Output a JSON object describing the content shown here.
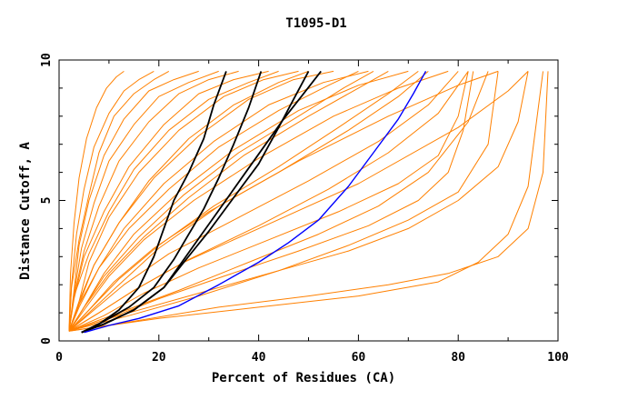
{
  "chart_data": {
    "type": "line",
    "title": "T1095-D1",
    "xlabel": "Percent of Residues (CA)",
    "ylabel": "Distance Cutoff, A",
    "xlim": [
      0,
      100
    ],
    "ylim": [
      0,
      10
    ],
    "x_ticks": [
      "0",
      "20",
      "40",
      "60",
      "80",
      "100"
    ],
    "y_ticks": [
      "0",
      "5",
      "10"
    ],
    "grid": false,
    "legend": "none",
    "colors": {
      "background_models": "#ff8000",
      "highlight": "#000000",
      "best": "#0000ff"
    },
    "background_models": [
      {
        "x": [
          2,
          8,
          15,
          25,
          40,
          60,
          80,
          90,
          94
        ],
        "y": [
          0.35,
          1.0,
          1.8,
          2.8,
          4.0,
          5.6,
          7.6,
          8.9,
          9.6
        ]
      },
      {
        "x": [
          2,
          6,
          12,
          20,
          32,
          48,
          66,
          80,
          88
        ],
        "y": [
          0.35,
          1.0,
          2.0,
          3.3,
          4.8,
          6.4,
          8.0,
          9.1,
          9.6
        ]
      },
      {
        "x": [
          2,
          5,
          10,
          17,
          27,
          40,
          55,
          68,
          78
        ],
        "y": [
          0.35,
          1.1,
          2.3,
          3.6,
          5.0,
          6.5,
          8.0,
          9.0,
          9.6
        ]
      },
      {
        "x": [
          2,
          5,
          9,
          15,
          24,
          35,
          48,
          60,
          70
        ],
        "y": [
          0.35,
          1.2,
          2.4,
          3.8,
          5.3,
          6.8,
          8.2,
          9.1,
          9.6
        ]
      },
      {
        "x": [
          2,
          4,
          8,
          13,
          21,
          31,
          42,
          53,
          62
        ],
        "y": [
          0.35,
          1.2,
          2.6,
          4.0,
          5.6,
          7.1,
          8.4,
          9.2,
          9.6
        ]
      },
      {
        "x": [
          2,
          4,
          7,
          12,
          19,
          28,
          38,
          47,
          55
        ],
        "y": [
          0.35,
          1.3,
          2.7,
          4.2,
          5.8,
          7.3,
          8.6,
          9.3,
          9.6
        ]
      },
      {
        "x": [
          2,
          4,
          6,
          10,
          16,
          24,
          33,
          41,
          48
        ],
        "y": [
          0.35,
          1.4,
          2.8,
          4.4,
          6.0,
          7.5,
          8.7,
          9.3,
          9.6
        ]
      },
      {
        "x": [
          2,
          3,
          5,
          9,
          14,
          21,
          28,
          35,
          42
        ],
        "y": [
          0.35,
          1.5,
          3.0,
          4.6,
          6.2,
          7.7,
          8.8,
          9.3,
          9.6
        ]
      },
      {
        "x": [
          2,
          3,
          5,
          8,
          12,
          18,
          24,
          30,
          36
        ],
        "y": [
          0.35,
          1.6,
          3.2,
          4.8,
          6.4,
          7.8,
          8.8,
          9.3,
          9.6
        ]
      },
      {
        "x": [
          2,
          3,
          4,
          6,
          9,
          13,
          18,
          23,
          28
        ],
        "y": [
          0.35,
          1.8,
          3.4,
          5.0,
          6.6,
          7.9,
          8.9,
          9.3,
          9.6
        ]
      },
      {
        "x": [
          2,
          2.5,
          3.5,
          5,
          7,
          10,
          13,
          16,
          19
        ],
        "y": [
          0.35,
          2.0,
          3.8,
          5.4,
          6.9,
          8.1,
          8.9,
          9.3,
          9.6
        ]
      },
      {
        "x": [
          2,
          2.3,
          3,
          4,
          5.5,
          7.5,
          9.5,
          11.5,
          13
        ],
        "y": [
          0.35,
          2.4,
          4.2,
          5.8,
          7.2,
          8.3,
          9.0,
          9.4,
          9.6
        ]
      },
      {
        "x": [
          2,
          9,
          17,
          28,
          42,
          56,
          68,
          76,
          80,
          82
        ],
        "y": [
          0.35,
          0.9,
          1.7,
          2.6,
          3.6,
          4.6,
          5.6,
          6.6,
          8.0,
          9.6
        ]
      },
      {
        "x": [
          2,
          10,
          20,
          33,
          48,
          62,
          72,
          78,
          81,
          83
        ],
        "y": [
          0.35,
          0.8,
          1.5,
          2.3,
          3.2,
          4.1,
          5.0,
          6.0,
          7.5,
          9.6
        ]
      },
      {
        "x": [
          2,
          14,
          28,
          44,
          58,
          70,
          80,
          86,
          88
        ],
        "y": [
          0.35,
          0.9,
          1.6,
          2.5,
          3.4,
          4.3,
          5.3,
          7.0,
          9.6
        ]
      },
      {
        "x": [
          2,
          12,
          24,
          38,
          52,
          64,
          74,
          82,
          86
        ],
        "y": [
          0.35,
          1.0,
          1.8,
          2.8,
          3.8,
          4.8,
          6.0,
          7.8,
          9.6
        ]
      },
      {
        "x": [
          2,
          7,
          13,
          22,
          35,
          50,
          64,
          74,
          80
        ],
        "y": [
          0.35,
          1.1,
          2.0,
          3.1,
          4.3,
          5.7,
          7.1,
          8.4,
          9.6
        ]
      },
      {
        "x": [
          2,
          6,
          11,
          19,
          30,
          44,
          58,
          68,
          74
        ],
        "y": [
          0.35,
          1.1,
          2.1,
          3.3,
          4.6,
          6.0,
          7.5,
          8.7,
          9.6
        ]
      },
      {
        "x": [
          2,
          4,
          8,
          14,
          22,
          32,
          44,
          54,
          60
        ],
        "y": [
          0.35,
          1.3,
          2.6,
          4.0,
          5.4,
          6.9,
          8.2,
          9.1,
          9.6
        ]
      },
      {
        "x": [
          2,
          5,
          10,
          17,
          26,
          37,
          50,
          60,
          66
        ],
        "y": [
          0.35,
          1.2,
          2.4,
          3.7,
          5.1,
          6.6,
          8.0,
          9.0,
          9.6
        ]
      },
      {
        "x": [
          2,
          3,
          6,
          10,
          15,
          22,
          30,
          38,
          44
        ],
        "y": [
          0.35,
          1.6,
          3.1,
          4.6,
          6.1,
          7.5,
          8.6,
          9.2,
          9.6
        ]
      },
      {
        "x": [
          2,
          3,
          4.5,
          7,
          10,
          15,
          20,
          26,
          32
        ],
        "y": [
          0.35,
          1.7,
          3.3,
          4.9,
          6.4,
          7.7,
          8.7,
          9.2,
          9.6
        ]
      },
      {
        "x": [
          2,
          2.5,
          4,
          6,
          8,
          11,
          15,
          19,
          22
        ],
        "y": [
          0.35,
          1.9,
          3.6,
          5.2,
          6.7,
          8.0,
          8.8,
          9.3,
          9.6
        ]
      },
      {
        "x": [
          2,
          15,
          32,
          50,
          66,
          78,
          88,
          94,
          97,
          98
        ],
        "y": [
          0.35,
          0.7,
          1.2,
          1.6,
          2.0,
          2.4,
          3.0,
          4.0,
          6.0,
          9.6
        ]
      },
      {
        "x": [
          2,
          20,
          40,
          60,
          76,
          84,
          90,
          94,
          97
        ],
        "y": [
          0.35,
          0.8,
          1.2,
          1.6,
          2.1,
          2.8,
          3.8,
          5.5,
          9.6
        ]
      },
      {
        "x": [
          2,
          12,
          26,
          42,
          58,
          70,
          80,
          88,
          92,
          94
        ],
        "y": [
          0.35,
          0.9,
          1.6,
          2.4,
          3.2,
          4.0,
          5.0,
          6.2,
          7.8,
          9.6
        ]
      },
      {
        "x": [
          2,
          8,
          15,
          26,
          40,
          54,
          66,
          76,
          82
        ],
        "y": [
          0.35,
          1.0,
          1.8,
          2.9,
          4.1,
          5.4,
          6.7,
          8.1,
          9.6
        ]
      },
      {
        "x": [
          2,
          6,
          12,
          20,
          31,
          44,
          56,
          66,
          72
        ],
        "y": [
          0.35,
          1.1,
          2.2,
          3.4,
          4.8,
          6.2,
          7.6,
          8.8,
          9.6
        ]
      },
      {
        "x": [
          2,
          5,
          9,
          16,
          25,
          36,
          48,
          57,
          63
        ],
        "y": [
          0.35,
          1.2,
          2.3,
          3.7,
          5.2,
          6.7,
          8.0,
          9.0,
          9.6
        ]
      },
      {
        "x": [
          2,
          4,
          7,
          12,
          18,
          26,
          35,
          44,
          50
        ],
        "y": [
          0.35,
          1.4,
          2.7,
          4.2,
          5.7,
          7.2,
          8.4,
          9.2,
          9.6
        ]
      }
    ],
    "highlighted_models": [
      {
        "x": [
          4.5,
          8,
          12,
          16,
          19,
          21,
          23,
          26,
          29,
          31,
          33.5
        ],
        "y": [
          0.3,
          0.6,
          1.1,
          1.9,
          3.0,
          4.0,
          5.0,
          6.0,
          7.2,
          8.4,
          9.6
        ]
      },
      {
        "x": [
          4.5,
          9,
          14,
          19,
          23,
          26,
          29,
          32,
          35,
          38,
          40.5
        ],
        "y": [
          0.3,
          0.7,
          1.2,
          1.9,
          2.9,
          3.8,
          4.7,
          5.8,
          7.0,
          8.3,
          9.6
        ]
      },
      {
        "x": [
          4.5,
          9,
          15,
          21,
          25,
          29,
          33,
          37,
          41,
          45,
          49,
          52.5
        ],
        "y": [
          0.3,
          0.6,
          1.1,
          1.9,
          2.9,
          3.9,
          4.9,
          5.9,
          6.9,
          7.9,
          8.8,
          9.6
        ]
      },
      {
        "x": [
          4.5,
          9,
          15,
          21,
          25,
          30,
          35,
          40,
          44,
          47,
          50
        ],
        "y": [
          0.3,
          0.6,
          1.1,
          1.9,
          2.8,
          3.9,
          5.1,
          6.3,
          7.6,
          8.6,
          9.6
        ]
      }
    ],
    "best_model": {
      "x": [
        5,
        10,
        16,
        24,
        32,
        40,
        46,
        52,
        58,
        63,
        68,
        71,
        73.5
      ],
      "y": [
        0.3,
        0.55,
        0.8,
        1.25,
        2.0,
        2.8,
        3.5,
        4.3,
        5.5,
        6.7,
        7.9,
        8.8,
        9.6
      ]
    }
  }
}
